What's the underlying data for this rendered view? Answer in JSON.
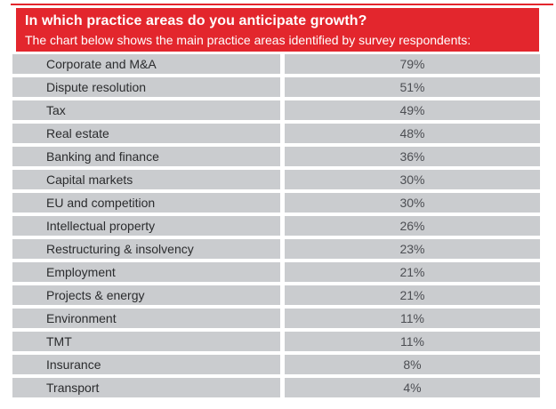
{
  "header": {
    "title": "In which practice areas do you anticipate growth?",
    "subtitle": "The chart below shows the main practice areas identified by survey respondents:"
  },
  "chart_data": {
    "type": "table",
    "title": "In which practice areas do you anticipate growth?",
    "subtitle": "The chart below shows the main practice areas identified by survey respondents:",
    "categories": [
      "Corporate and M&A",
      "Dispute resolution",
      "Tax",
      "Real estate",
      "Banking and finance",
      "Capital markets",
      "EU and competition",
      "Intellectual property",
      "Restructuring & insolvency",
      "Employment",
      "Projects & energy",
      "Environment",
      "TMT",
      "Insurance",
      "Transport"
    ],
    "values": [
      79,
      51,
      49,
      48,
      36,
      30,
      30,
      26,
      23,
      21,
      21,
      11,
      11,
      8,
      4
    ],
    "display_values": [
      "79%",
      "51%",
      "49%",
      "48%",
      "36%",
      "30%",
      "30%",
      "26%",
      "23%",
      "21%",
      "21%",
      "11%",
      "11%",
      "8%",
      "4%"
    ],
    "unit": "%",
    "layout": {
      "columns": [
        "practice area",
        "percentage"
      ],
      "value_alignment": "center",
      "grid": false,
      "legend": "none"
    }
  },
  "colors": {
    "header_red": "#e3262d",
    "row_gray": "#cacccf",
    "label_text": "#2b2c2e",
    "value_text": "#4c4e53"
  }
}
